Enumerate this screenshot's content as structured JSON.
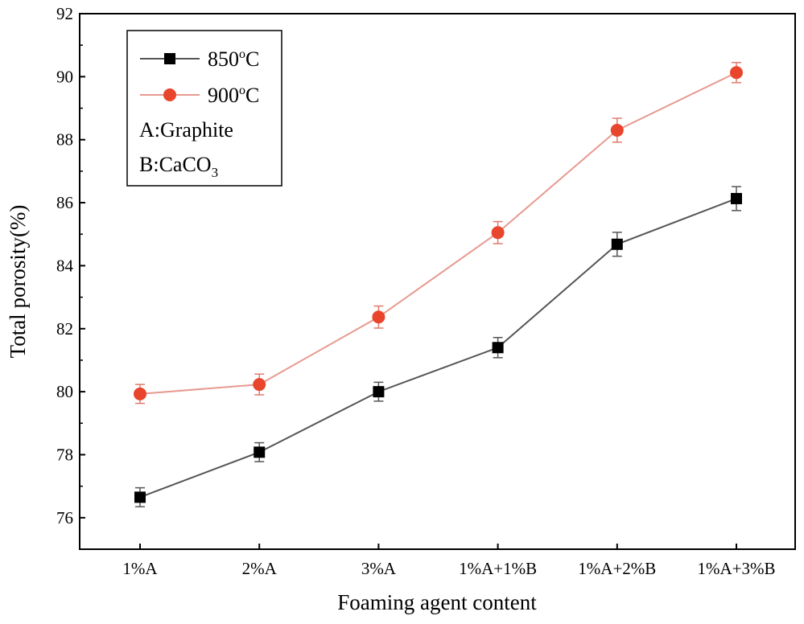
{
  "chart_data": {
    "type": "line",
    "title": "",
    "xlabel": "Foaming agent content",
    "ylabel": "Total porosity(%)",
    "categories": [
      "1%A",
      "2%A",
      "3%A",
      "1%A+1%B",
      "1%A+2%B",
      "1%A+3%B"
    ],
    "ylim": [
      75,
      92
    ],
    "yticks": [
      76,
      78,
      80,
      82,
      84,
      86,
      88,
      90,
      92
    ],
    "grid": false,
    "legend_position": "top-left",
    "series": [
      {
        "name": "850",
        "temp_label": "850",
        "unit_sup": "o",
        "unit_suffix": "C",
        "color": "#000000",
        "line_color": "#555555",
        "marker": "square",
        "values": [
          76.65,
          78.08,
          80.0,
          81.4,
          84.68,
          86.13
        ],
        "errors": [
          0.3,
          0.3,
          0.3,
          0.32,
          0.38,
          0.38
        ]
      },
      {
        "name": "900",
        "temp_label": "900",
        "unit_sup": "o",
        "unit_suffix": "C",
        "color": "#e8452c",
        "line_color": "#e79a8f",
        "marker": "circle",
        "values": [
          79.93,
          80.23,
          82.37,
          85.05,
          88.3,
          90.13
        ],
        "errors": [
          0.3,
          0.33,
          0.35,
          0.35,
          0.38,
          0.32
        ]
      }
    ],
    "notes": [
      {
        "base": "A:Graphite",
        "sub": "",
        "tail": ""
      },
      {
        "base": "B:CaCO",
        "sub": "3",
        "tail": ""
      }
    ]
  }
}
